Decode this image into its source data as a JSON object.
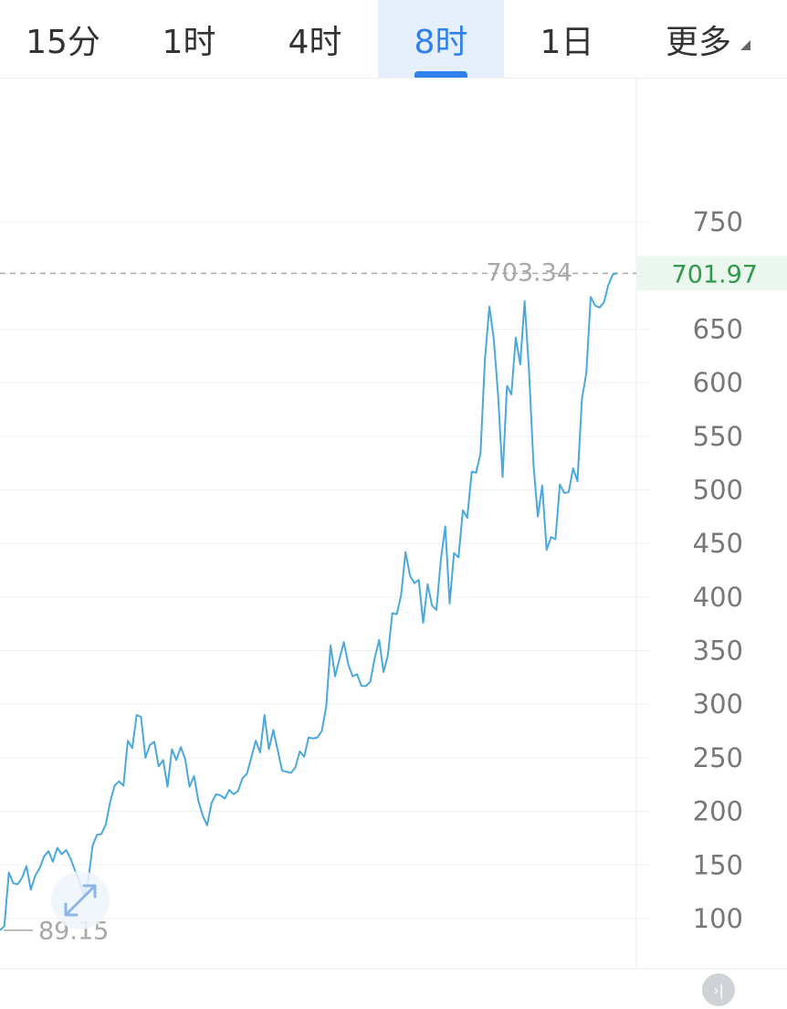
{
  "tabs": [
    {
      "label": "15分",
      "active": false
    },
    {
      "label": "1时",
      "active": false
    },
    {
      "label": "4时",
      "active": false
    },
    {
      "label": "8时",
      "active": true
    },
    {
      "label": "1日",
      "active": false
    },
    {
      "label": "更多",
      "active": false
    }
  ],
  "colors": {
    "accent": "#2f80ed",
    "line": "#4aa8dc",
    "last_price": "#2e9a4a",
    "grid": "#eef0f3"
  },
  "chart_data": {
    "type": "line",
    "ylim": [
      50,
      800
    ],
    "yticks": [
      "100",
      "150",
      "200",
      "250",
      "300",
      "350",
      "400",
      "450",
      "500",
      "550",
      "600",
      "650",
      "750"
    ],
    "grid": true,
    "high_marker": "703.34",
    "low_marker": "89.15",
    "last_price": "701.97",
    "series": [
      {
        "values": [
          89,
          93,
          143,
          133,
          132,
          138,
          149,
          127,
          140,
          147,
          158,
          163,
          153,
          166,
          160,
          164,
          156,
          145,
          135,
          122,
          135,
          168,
          178,
          179,
          188,
          209,
          224,
          228,
          224,
          266,
          259,
          290,
          288,
          250,
          262,
          265,
          242,
          248,
          223,
          258,
          248,
          260,
          249,
          223,
          233,
          210,
          196,
          187,
          208,
          216,
          215,
          212,
          220,
          216,
          219,
          231,
          235,
          250,
          266,
          255,
          290,
          258,
          276,
          257,
          238,
          237,
          236,
          241,
          256,
          251,
          269,
          268,
          269,
          275,
          298,
          355,
          326,
          342,
          358,
          337,
          326,
          328,
          317,
          317,
          321,
          343,
          360,
          330,
          346,
          385,
          384,
          402,
          442,
          420,
          413,
          416,
          376,
          412,
          392,
          388,
          435,
          466,
          394,
          441,
          437,
          481,
          474,
          517,
          516,
          534,
          621,
          671,
          641,
          588,
          512,
          597,
          589,
          642,
          617,
          676,
          612,
          524,
          475,
          504,
          444,
          456,
          454,
          505,
          497,
          498,
          520,
          508,
          585,
          609,
          680,
          672,
          670,
          675,
          691,
          701,
          702
        ]
      }
    ]
  },
  "toolbar": {
    "reset_icon": "expand-arrows-icon",
    "scroll_latest_icon": "scroll-to-latest-icon",
    "scroll_latest_glyph": "›|"
  }
}
